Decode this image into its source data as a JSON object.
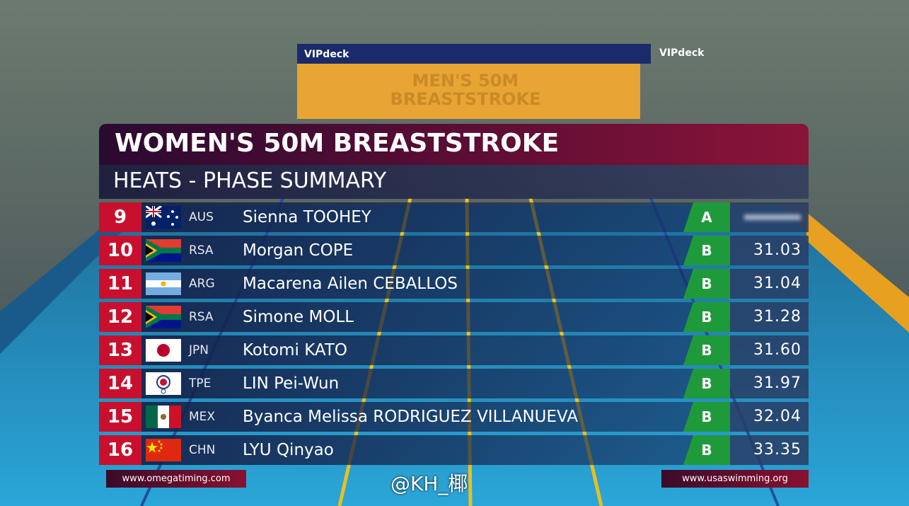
{
  "header": {
    "title": "WOMEN'S 50M BREASTSTROKE",
    "subtitle": "HEATS - PHASE SUMMARY"
  },
  "table": {
    "rows": [
      {
        "rank": "9",
        "country": "AUS",
        "name": "Sienna TOOHEY",
        "heat": "A"
      },
      {
        "rank": "10",
        "country": "RSA",
        "name": "Morgan COPE",
        "heat": "B",
        "time": "31.03"
      },
      {
        "rank": "11",
        "country": "ARG",
        "name": "Macarena Ailen CEBALLOS",
        "heat": "B",
        "time": "31.04"
      },
      {
        "rank": "12",
        "country": "RSA",
        "name": "Simone MOLL",
        "heat": "B",
        "time": "31.28"
      },
      {
        "rank": "13",
        "country": "JPN",
        "name": "Kotomi KATO",
        "heat": "B",
        "time": "31.60"
      },
      {
        "rank": "14",
        "country": "TPE",
        "name": "LIN Pei-Wun",
        "heat": "B",
        "time": "31.97"
      },
      {
        "rank": "15",
        "country": "MEX",
        "name": "Byanca Melissa RODRIGUEZ VILLANUEVA",
        "heat": "B",
        "time": "32.04"
      },
      {
        "rank": "16",
        "country": "CHN",
        "name": "LYU Qinyao",
        "heat": "B",
        "time": "33.35"
      }
    ]
  },
  "footer": {
    "left": "www.omegatiming.com",
    "right": "www.usaswimming.org"
  },
  "watermark": "@KH_椰",
  "background": {
    "screen_line1": "MEN'S 50M",
    "screen_line2": "BREASTSTROKE",
    "sign_left": "VIPdeck",
    "sign_right": "VIPdeck"
  }
}
